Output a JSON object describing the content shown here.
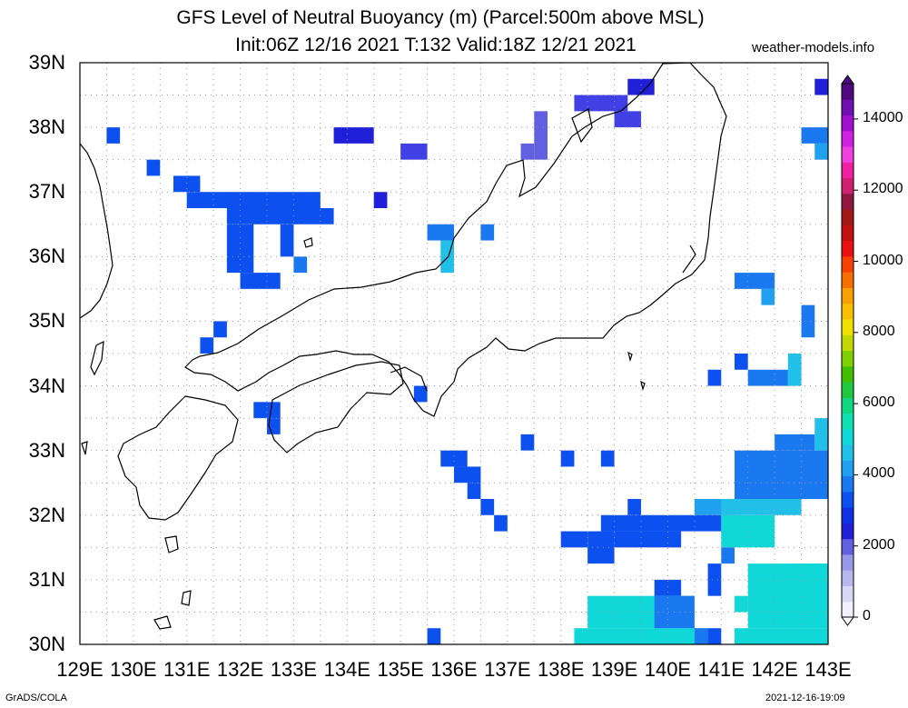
{
  "title": {
    "line1": "GFS Level of Neutral Buoyancy (m) (Parcel:500m above MSL)",
    "line2": "Init:06Z 12/16 2021 T:132 Valid:18Z 12/21 2021"
  },
  "watermark": "weather-models.info",
  "lat_labels": [
    "39N",
    "38N",
    "37N",
    "36N",
    "35N",
    "34N",
    "33N",
    "32N",
    "31N",
    "30N"
  ],
  "lon_labels": [
    "129E",
    "130E",
    "131E",
    "132E",
    "133E",
    "134E",
    "135E",
    "136E",
    "137E",
    "138E",
    "139E",
    "140E",
    "141E",
    "142E",
    "143E"
  ],
  "colorbar": {
    "labels": [
      "14000",
      "12000",
      "10000",
      "8000",
      "6000",
      "4000",
      "2000",
      "0"
    ],
    "colors": [
      "#f0f0ff",
      "#d8d8f6",
      "#b8b8ee",
      "#9898e8",
      "#6060e0",
      "#2020d8",
      "#1030e8",
      "#0c50f0",
      "#1a78f0",
      "#20a0f0",
      "#20c0e8",
      "#10d8d8",
      "#10e0b0",
      "#10d880",
      "#20c840",
      "#40c000",
      "#80d000",
      "#c0d800",
      "#f0e000",
      "#f8c000",
      "#f8a000",
      "#f87000",
      "#f84000",
      "#e81010",
      "#c01010",
      "#a01818",
      "#901840",
      "#d02070",
      "#f020a0",
      "#f040e0",
      "#d020e0",
      "#a010d0",
      "#7010b0",
      "#500880"
    ],
    "cap_low_color": "#ffffff",
    "cap_high_color": "#500880"
  },
  "footer": {
    "left": "GrADS/COLA",
    "right": "2021-12-16-19:09"
  },
  "map": {
    "lon_range": [
      129,
      143
    ],
    "lat_range": [
      30,
      39
    ],
    "pixel_cells": [
      {
        "lon": 129.5,
        "lat": 37.5,
        "c": "#0c50f0"
      }
    ]
  }
}
